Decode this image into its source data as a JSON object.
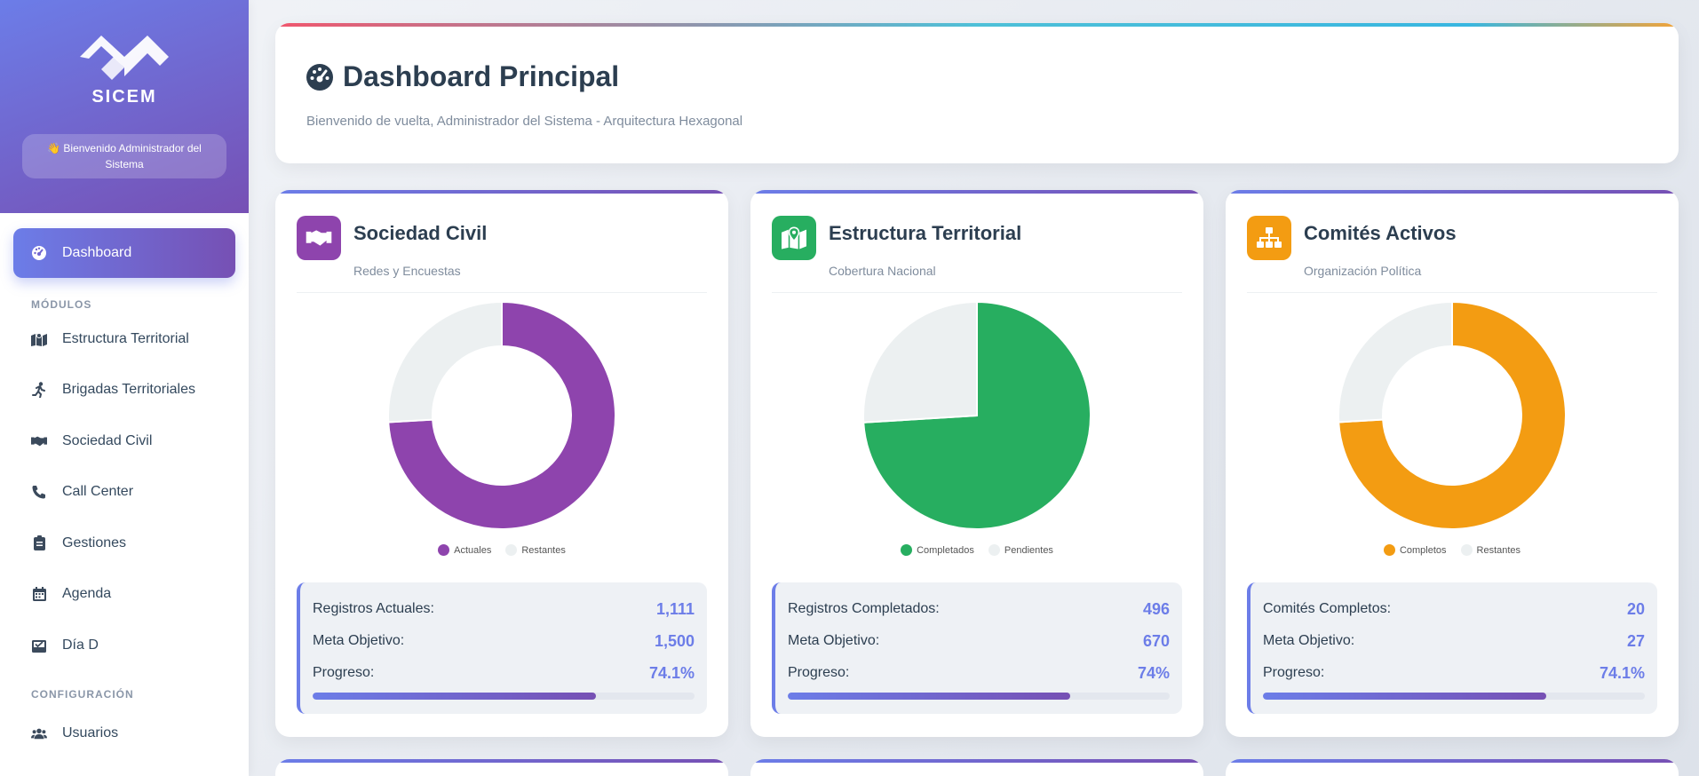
{
  "app": {
    "brand": "SICEM",
    "welcome": "👋 Bienvenido Administrador del Sistema"
  },
  "sidebar": {
    "active": {
      "label": "Dashboard",
      "icon": "dashboard-gauge-icon"
    },
    "section_modules": "MÓDULOS",
    "modules": [
      {
        "label": "Estructura Territorial",
        "icon": "map-icon"
      },
      {
        "label": "Brigadas Territoriales",
        "icon": "running-icon"
      },
      {
        "label": "Sociedad Civil",
        "icon": "handshake-icon"
      },
      {
        "label": "Call Center",
        "icon": "phone-icon"
      },
      {
        "label": "Gestiones",
        "icon": "clipboard-icon"
      },
      {
        "label": "Agenda",
        "icon": "calendar-icon"
      },
      {
        "label": "Día D",
        "icon": "inbox-check-icon"
      }
    ],
    "section_config": "CONFIGURACIÓN",
    "config": [
      {
        "label": "Usuarios",
        "icon": "users-icon"
      }
    ]
  },
  "header": {
    "title": "Dashboard Principal",
    "subtitle": "Bienvenido de vuelta, Administrador del Sistema - Arquitectura Hexagonal"
  },
  "cards": [
    {
      "title": "Sociedad Civil",
      "subtitle": "Redes y Encuestas",
      "icon": "handshake-icon",
      "icon_color": "#8e44ad",
      "stats": [
        {
          "label": "Registros Actuales:",
          "value": "1,111"
        },
        {
          "label": "Meta Objetivo:",
          "value": "1,500"
        },
        {
          "label": "Progreso:",
          "value": "74.1%"
        }
      ],
      "progress": 0.741
    },
    {
      "title": "Estructura Territorial",
      "subtitle": "Cobertura Nacional",
      "icon": "map-marker-icon",
      "icon_color": "#27ae60",
      "stats": [
        {
          "label": "Registros Completados:",
          "value": "496"
        },
        {
          "label": "Meta Objetivo:",
          "value": "670"
        },
        {
          "label": "Progreso:",
          "value": "74%"
        }
      ],
      "progress": 0.74
    },
    {
      "title": "Comités Activos",
      "subtitle": "Organización Política",
      "icon": "sitemap-icon",
      "icon_color": "#f39c12",
      "stats": [
        {
          "label": "Comités Completos:",
          "value": "20"
        },
        {
          "label": "Meta Objetivo:",
          "value": "27"
        },
        {
          "label": "Progreso:",
          "value": "74.1%"
        }
      ],
      "progress": 0.741
    }
  ],
  "chart_data": [
    {
      "type": "pie",
      "variant": "doughnut",
      "labels": [
        "Actuales",
        "Restantes"
      ],
      "values": [
        1111,
        389
      ],
      "colors": [
        "#8e44ad",
        "#ecf0f1"
      ],
      "legend": "bottom"
    },
    {
      "type": "pie",
      "labels": [
        "Completados",
        "Pendientes"
      ],
      "values": [
        496,
        174
      ],
      "colors": [
        "#27ae60",
        "#ecf0f1"
      ],
      "legend": "bottom"
    },
    {
      "type": "pie",
      "variant": "doughnut",
      "labels": [
        "Completos",
        "Restantes"
      ],
      "values": [
        20,
        7
      ],
      "colors": [
        "#f39c12",
        "#ecf0f1"
      ],
      "legend": "bottom"
    }
  ]
}
